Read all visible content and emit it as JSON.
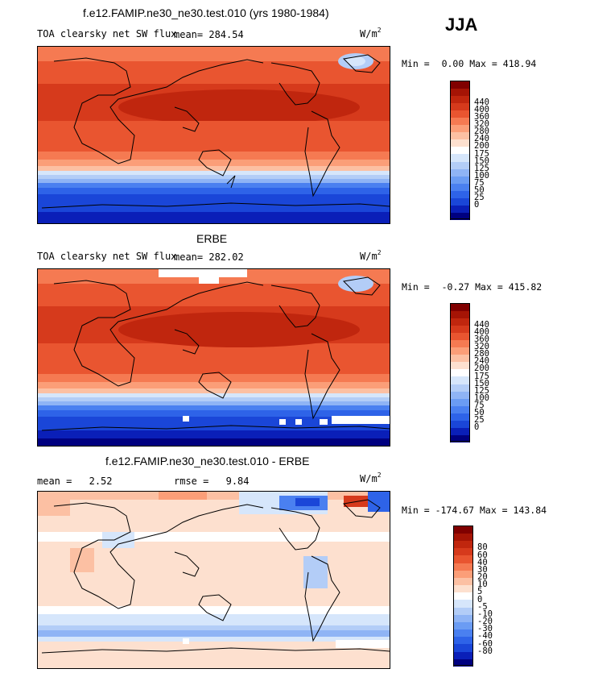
{
  "season": "JJA",
  "panels": [
    {
      "id": "model",
      "title": "f.e12.FAMIP.ne30_ne30.test.010 (yrs 1980-1984)",
      "variable": "TOA clearsky net SW flux",
      "mean_label": "mean=",
      "mean": "284.54",
      "units_base": "W/m",
      "units_exp": "2",
      "min_label": "Min =",
      "min": "0.00",
      "max_label": "Max =",
      "max": "418.94",
      "colorbar_colors": [
        "#000080",
        "#0a1fb8",
        "#1a46d8",
        "#2e63e8",
        "#4a80f0",
        "#6b9cf3",
        "#8fb4f5",
        "#b3cdf7",
        "#d6e6fb",
        "#ffffff",
        "#fde0cf",
        "#fcc0a3",
        "#fb9e78",
        "#f57a52",
        "#e95530",
        "#d63a1c",
        "#c0260e",
        "#a51405",
        "#800000"
      ],
      "colorbar_labels": [
        "440",
        "400",
        "360",
        "320",
        "280",
        "240",
        "200",
        "175",
        "150",
        "125",
        "100",
        "75",
        "50",
        "25",
        "0"
      ]
    },
    {
      "id": "obs",
      "title": "ERBE",
      "variable": "TOA clearsky net SW flux",
      "mean_label": "mean=",
      "mean": "282.02",
      "units_base": "W/m",
      "units_exp": "2",
      "min_label": "Min =",
      "min": "-0.27",
      "max_label": "Max =",
      "max": "415.82",
      "colorbar_colors": [
        "#000080",
        "#0a1fb8",
        "#1a46d8",
        "#2e63e8",
        "#4a80f0",
        "#6b9cf3",
        "#8fb4f5",
        "#b3cdf7",
        "#d6e6fb",
        "#ffffff",
        "#fde0cf",
        "#fcc0a3",
        "#fb9e78",
        "#f57a52",
        "#e95530",
        "#d63a1c",
        "#c0260e",
        "#a51405",
        "#800000"
      ],
      "colorbar_labels": [
        "440",
        "400",
        "360",
        "320",
        "280",
        "240",
        "200",
        "175",
        "150",
        "125",
        "100",
        "75",
        "50",
        "25",
        "0"
      ]
    },
    {
      "id": "diff",
      "title": "f.e12.FAMIP.ne30_ne30.test.010 - ERBE",
      "mean_label": "mean =",
      "mean": "2.52",
      "rmse_label": "rmse =",
      "rmse": "9.84",
      "units_base": "W/m",
      "units_exp": "2",
      "min_label": "Min =",
      "min": "-174.67",
      "max_label": "Max =",
      "max": "143.84",
      "colorbar_colors": [
        "#000080",
        "#0a1fb8",
        "#1a46d8",
        "#2e63e8",
        "#4a80f0",
        "#6b9cf3",
        "#8fb4f5",
        "#b3cdf7",
        "#d6e6fb",
        "#ffffff",
        "#fde0cf",
        "#fcc0a3",
        "#fb9e78",
        "#f57a52",
        "#e95530",
        "#d63a1c",
        "#c0260e",
        "#a51405",
        "#800000"
      ],
      "colorbar_labels": [
        "80",
        "60",
        "40",
        "30",
        "20",
        "10",
        "5",
        "0",
        "-5",
        "-10",
        "-20",
        "-30",
        "-40",
        "-60",
        "-80"
      ]
    }
  ],
  "chart_data": [
    {
      "type": "heatmap",
      "title": "f.e12.FAMIP.ne30_ne30.test.010 (yrs 1980-1984)",
      "subtitle": "TOA clearsky net SW flux",
      "units": "W/m2",
      "mean": 284.54,
      "min": 0.0,
      "max": 418.94,
      "contour_levels": [
        0,
        25,
        50,
        75,
        100,
        125,
        150,
        175,
        200,
        240,
        280,
        320,
        360,
        400,
        440
      ],
      "zonal_band_values": [
        {
          "lat": 85,
          "value": 300
        },
        {
          "lat": 70,
          "value": 330
        },
        {
          "lat": 50,
          "value": 380
        },
        {
          "lat": 30,
          "value": 400
        },
        {
          "lat": 10,
          "value": 360
        },
        {
          "lat": -10,
          "value": 340
        },
        {
          "lat": -30,
          "value": 280
        },
        {
          "lat": -45,
          "value": 200
        },
        {
          "lat": -55,
          "value": 140
        },
        {
          "lat": -65,
          "value": 60
        },
        {
          "lat": -80,
          "value": 10
        }
      ]
    },
    {
      "type": "heatmap",
      "title": "ERBE",
      "subtitle": "TOA clearsky net SW flux",
      "units": "W/m2",
      "mean": 282.02,
      "min": -0.27,
      "max": 415.82,
      "contour_levels": [
        0,
        25,
        50,
        75,
        100,
        125,
        150,
        175,
        200,
        240,
        280,
        320,
        360,
        400,
        440
      ],
      "zonal_band_values": [
        {
          "lat": 85,
          "value": 290
        },
        {
          "lat": 70,
          "value": 320
        },
        {
          "lat": 50,
          "value": 380
        },
        {
          "lat": 30,
          "value": 400
        },
        {
          "lat": 10,
          "value": 360
        },
        {
          "lat": -10,
          "value": 340
        },
        {
          "lat": -30,
          "value": 280
        },
        {
          "lat": -45,
          "value": 200
        },
        {
          "lat": -55,
          "value": 130
        },
        {
          "lat": -65,
          "value": 50
        },
        {
          "lat": -80,
          "value": 10
        }
      ]
    },
    {
      "type": "heatmap",
      "title": "f.e12.FAMIP.ne30_ne30.test.010 - ERBE",
      "units": "W/m2",
      "mean": 2.52,
      "rmse": 9.84,
      "min": -174.67,
      "max": 143.84,
      "contour_levels": [
        -80,
        -60,
        -40,
        -30,
        -20,
        -10,
        -5,
        0,
        5,
        10,
        20,
        30,
        40,
        60,
        80
      ],
      "zonal_band_values": [
        {
          "lat": 85,
          "value": -5
        },
        {
          "lat": 70,
          "value": 0
        },
        {
          "lat": 50,
          "value": 5
        },
        {
          "lat": 30,
          "value": 3
        },
        {
          "lat": 10,
          "value": 5
        },
        {
          "lat": -10,
          "value": 3
        },
        {
          "lat": -30,
          "value": 5
        },
        {
          "lat": -50,
          "value": -5
        },
        {
          "lat": -60,
          "value": -10
        },
        {
          "lat": -75,
          "value": 5
        }
      ]
    }
  ]
}
